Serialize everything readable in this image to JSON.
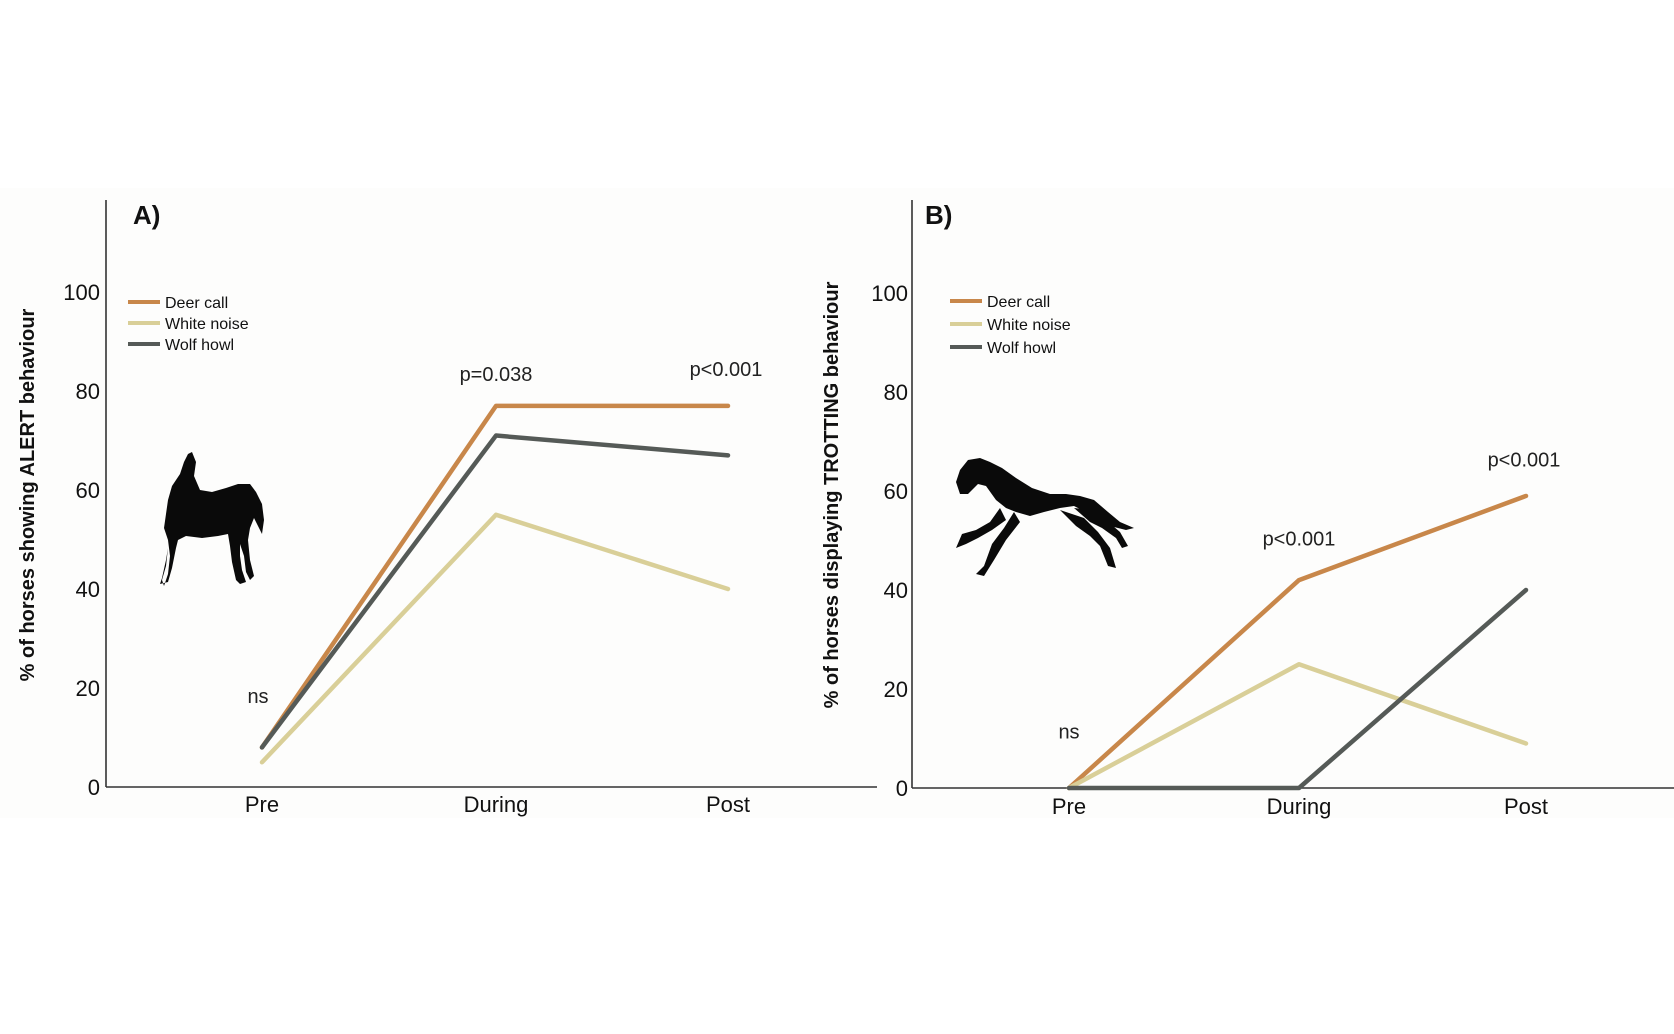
{
  "colors": {
    "deer_call": "#c8874a",
    "white_noise": "#d9cf98",
    "wolf_howl": "#555a57"
  },
  "chart_data": [
    {
      "type": "line",
      "panel_label": "A)",
      "ylabel": "% of horses showing ALERT behaviour",
      "xlabel": "",
      "categories": [
        "Pre",
        "During",
        "Post"
      ],
      "ylim": [
        0,
        110
      ],
      "yticks": [
        0,
        20,
        40,
        60,
        80,
        100
      ],
      "grid": false,
      "legend_position": "top-left",
      "series": [
        {
          "name": "Deer call",
          "color_key": "deer_call",
          "values": [
            8,
            77,
            77
          ]
        },
        {
          "name": "White noise",
          "color_key": "white_noise",
          "values": [
            5,
            55,
            40
          ]
        },
        {
          "name": "Wolf howl",
          "color_key": "wolf_howl",
          "values": [
            8,
            71,
            67
          ]
        }
      ],
      "annotations": [
        {
          "text": "ns",
          "category": "Pre",
          "y": 17
        },
        {
          "text": "p=0.038",
          "category": "During",
          "y": 82
        },
        {
          "text": "p<0.001",
          "category": "Post",
          "y": 83
        }
      ],
      "icon": "standing-horse-icon"
    },
    {
      "type": "line",
      "panel_label": "B)",
      "ylabel": "% of horses displaying TROTTING behaviour",
      "xlabel": "",
      "categories": [
        "Pre",
        "During",
        "Post"
      ],
      "ylim": [
        0,
        110
      ],
      "yticks": [
        0,
        20,
        40,
        60,
        80,
        100
      ],
      "grid": false,
      "legend_position": "top-left",
      "series": [
        {
          "name": "Deer call",
          "color_key": "deer_call",
          "values": [
            0,
            42,
            59
          ]
        },
        {
          "name": "White noise",
          "color_key": "white_noise",
          "values": [
            0,
            25,
            9
          ]
        },
        {
          "name": "Wolf howl",
          "color_key": "wolf_howl",
          "values": [
            0,
            0,
            40
          ]
        }
      ],
      "annotations": [
        {
          "text": "ns",
          "category": "Pre",
          "y": 10
        },
        {
          "text": "p<0.001",
          "category": "During",
          "y": 49
        },
        {
          "text": "p<0.001",
          "category": "Post",
          "y": 65
        }
      ],
      "icon": "galloping-horse-icon"
    }
  ]
}
